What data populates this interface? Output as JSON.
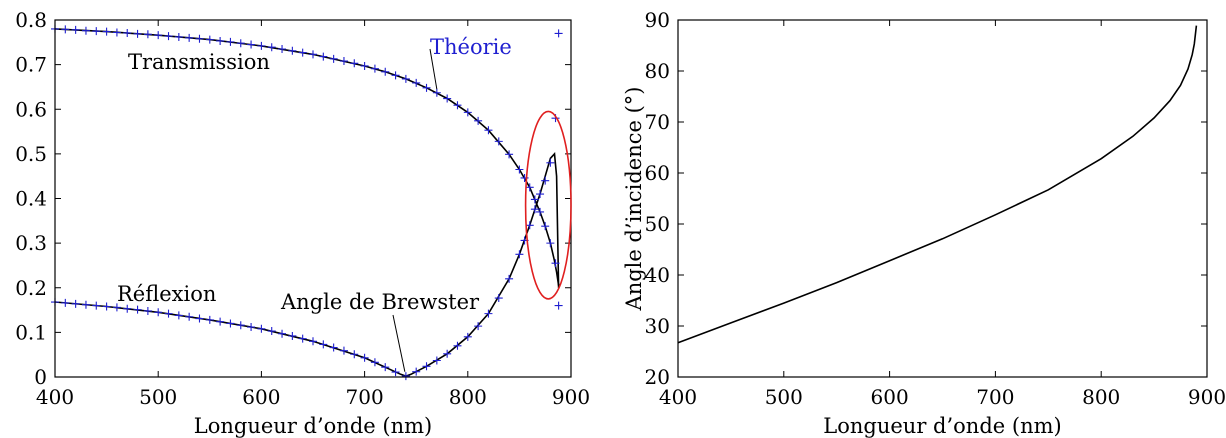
{
  "chart_data": [
    {
      "type": "line",
      "xlabel": "Longueur d’onde (nm)",
      "ylabel": "",
      "xlim": [
        400,
        900
      ],
      "ylim": [
        0,
        0.8
      ],
      "xticks": [
        "400",
        "500",
        "600",
        "700",
        "800",
        "900"
      ],
      "yticks": [
        "0",
        "0.1",
        "0.2",
        "0.3",
        "0.4",
        "0.5",
        "0.6",
        "0.7",
        "0.8"
      ],
      "grid": false,
      "series": [
        {
          "name": "Transmission",
          "style": "solid line",
          "color": "#000000",
          "x": [
            400,
            450,
            500,
            550,
            600,
            650,
            700,
            720,
            740,
            760,
            780,
            800,
            820,
            840,
            850,
            860,
            870,
            875,
            880,
            884,
            886,
            888
          ],
          "values": [
            0.78,
            0.774,
            0.766,
            0.756,
            0.742,
            0.723,
            0.697,
            0.684,
            0.668,
            0.648,
            0.624,
            0.593,
            0.553,
            0.499,
            0.465,
            0.425,
            0.37,
            0.338,
            0.3,
            0.26,
            0.235,
            0.205
          ]
        },
        {
          "name": "Réflexion",
          "style": "solid line",
          "color": "#000000",
          "x": [
            400,
            450,
            500,
            550,
            600,
            650,
            700,
            720,
            735,
            740,
            745,
            760,
            780,
            800,
            820,
            840,
            850,
            860,
            870,
            875,
            880,
            884,
            886,
            888
          ],
          "values": [
            0.168,
            0.158,
            0.145,
            0.128,
            0.108,
            0.08,
            0.043,
            0.022,
            0.006,
            0.002,
            0.006,
            0.024,
            0.052,
            0.09,
            0.142,
            0.22,
            0.275,
            0.34,
            0.41,
            0.45,
            0.49,
            0.5,
            0.45,
            0.2
          ]
        },
        {
          "name": "Théorie",
          "style": "plus markers",
          "color": "#1f1fd0",
          "x": [
            400,
            410,
            420,
            430,
            440,
            450,
            460,
            470,
            480,
            490,
            500,
            510,
            520,
            530,
            540,
            550,
            560,
            570,
            580,
            590,
            600,
            610,
            620,
            630,
            640,
            650,
            660,
            670,
            680,
            690,
            700,
            710,
            720,
            730,
            740,
            750,
            760,
            770,
            780,
            790,
            800,
            810,
            820,
            830,
            840,
            850,
            855,
            860,
            865,
            870,
            875,
            880,
            885
          ],
          "transmission": [
            0.78,
            0.779,
            0.778,
            0.776,
            0.775,
            0.774,
            0.772,
            0.771,
            0.769,
            0.768,
            0.766,
            0.764,
            0.762,
            0.76,
            0.758,
            0.756,
            0.753,
            0.751,
            0.748,
            0.745,
            0.742,
            0.739,
            0.735,
            0.731,
            0.727,
            0.723,
            0.718,
            0.713,
            0.708,
            0.703,
            0.697,
            0.691,
            0.684,
            0.676,
            0.668,
            0.659,
            0.648,
            0.637,
            0.624,
            0.609,
            0.593,
            0.574,
            0.553,
            0.528,
            0.499,
            0.465,
            0.446,
            0.425,
            0.398,
            0.37,
            0.338,
            0.3,
            0.255
          ],
          "reflexion": [
            0.168,
            0.166,
            0.164,
            0.162,
            0.16,
            0.158,
            0.156,
            0.153,
            0.151,
            0.148,
            0.145,
            0.142,
            0.138,
            0.135,
            0.131,
            0.128,
            0.124,
            0.12,
            0.116,
            0.112,
            0.108,
            0.103,
            0.097,
            0.092,
            0.086,
            0.08,
            0.073,
            0.066,
            0.059,
            0.051,
            0.043,
            0.033,
            0.022,
            0.011,
            0.002,
            0.012,
            0.024,
            0.037,
            0.052,
            0.07,
            0.09,
            0.114,
            0.142,
            0.177,
            0.22,
            0.275,
            0.306,
            0.34,
            0.376,
            0.41,
            0.44,
            0.48,
            0.58
          ],
          "extra_points": [
            {
              "x": 888,
              "y": 0.77
            },
            {
              "x": 888,
              "y": 0.16
            }
          ]
        }
      ],
      "annotations": [
        {
          "text": "Transmission",
          "near_x": 540,
          "near_y": 0.72
        },
        {
          "text": "Théorie",
          "color": "#1f1fd0",
          "arrow_to": {
            "x": 770,
            "y": 0.645
          }
        },
        {
          "text": "Réflexion",
          "near_x": 470,
          "near_y": 0.18
        },
        {
          "text": "Angle de Brewster",
          "arrow_to": {
            "x": 740,
            "y": 0.005
          }
        },
        {
          "shape": "ellipse",
          "color": "#e02020",
          "center": {
            "x": 878,
            "y": 0.385
          },
          "half_width_x": 22,
          "half_height_y": 0.21
        }
      ]
    },
    {
      "type": "line",
      "xlabel": "Longueur d’onde (nm)",
      "ylabel": "Angle d’incidence (°)",
      "xlim": [
        400,
        900
      ],
      "ylim": [
        20,
        90
      ],
      "xticks": [
        "400",
        "500",
        "600",
        "700",
        "800",
        "900"
      ],
      "yticks": [
        "20",
        "30",
        "40",
        "50",
        "60",
        "70",
        "80",
        "90"
      ],
      "grid": false,
      "series": [
        {
          "name": "",
          "color": "#000000",
          "x": [
            400,
            450,
            500,
            550,
            600,
            650,
            700,
            750,
            800,
            830,
            850,
            865,
            875,
            882,
            886,
            888,
            890
          ],
          "values": [
            26.7,
            30.6,
            34.5,
            38.5,
            42.8,
            47.1,
            51.8,
            56.7,
            62.8,
            67.2,
            70.8,
            74.2,
            77.2,
            80.4,
            83.2,
            85.3,
            88.9
          ]
        }
      ]
    }
  ]
}
